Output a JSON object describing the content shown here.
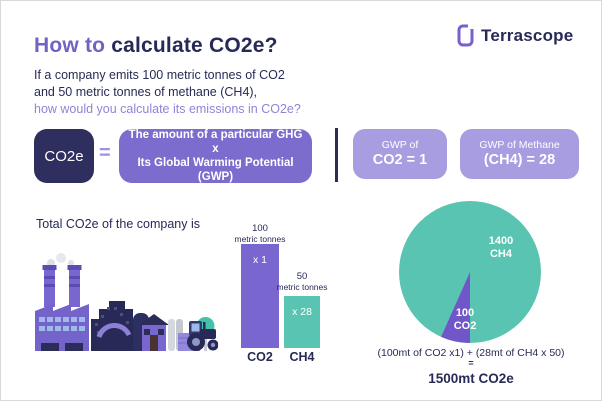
{
  "header": {
    "title_accent": "How to",
    "title_rest": "calculate CO2e?",
    "subtitle_line1": "If a company emits 100 metric tonnes of CO2",
    "subtitle_line2": "and 50 metric tonnes of methane (CH4),",
    "subtitle_line3": "how would you calculate its emissions in CO2e?",
    "brand": "Terrascope"
  },
  "icons": {
    "brand_logo": "terrascope-square-outline-icon"
  },
  "formula": {
    "co2e_label": "CO2e",
    "equals": "=",
    "ghg_line1": "The amount of a particular GHG",
    "ghg_line2": "x",
    "ghg_line3": "Its Global Warming Potential (GWP)",
    "gwp_co2_line1": "GWP of",
    "gwp_co2_line2": "CO2 = 1",
    "gwp_ch4_line1": "GWP of Methane",
    "gwp_ch4_line2": "(CH4) = 28"
  },
  "section": {
    "intro": "Total CO2e of the company is"
  },
  "chart_data": [
    {
      "type": "bar",
      "categories": [
        "CO2",
        "CH4"
      ],
      "values": [
        100,
        50
      ],
      "unit": "metric tonnes",
      "value_labels": [
        "100",
        "50"
      ],
      "multipliers": [
        "x 1",
        "x 28"
      ],
      "colors": [
        "#7a66cf",
        "#5ac4b2"
      ],
      "ylim": [
        0,
        100
      ],
      "title": "",
      "xlabel": "",
      "ylabel": ""
    },
    {
      "type": "pie",
      "slices": [
        {
          "label": "CH4",
          "value_label": "1400",
          "value": 1400,
          "color": "#5ac4b2"
        },
        {
          "label": "CO2",
          "value_label": "100",
          "value": 100,
          "color": "#7156ca"
        }
      ],
      "title": ""
    }
  ],
  "result": {
    "equation_line1": "(100mt of CO2 x1) + (28mt of CH4 x 50)",
    "equals": "=",
    "total": "1500mt CO2e"
  },
  "colors": {
    "navy": "#2b2d58",
    "heading_purple": "#6f63c5",
    "subtitle_purple": "#8d85d8",
    "dark_box": "#2e2f5e",
    "ghg_box_purple": "#7b6cce",
    "gwp_box_light_purple": "#a79de0",
    "bar_purple": "#7a66cf",
    "teal": "#5ac4b2",
    "pie_slice_purple": "#7156ca"
  }
}
